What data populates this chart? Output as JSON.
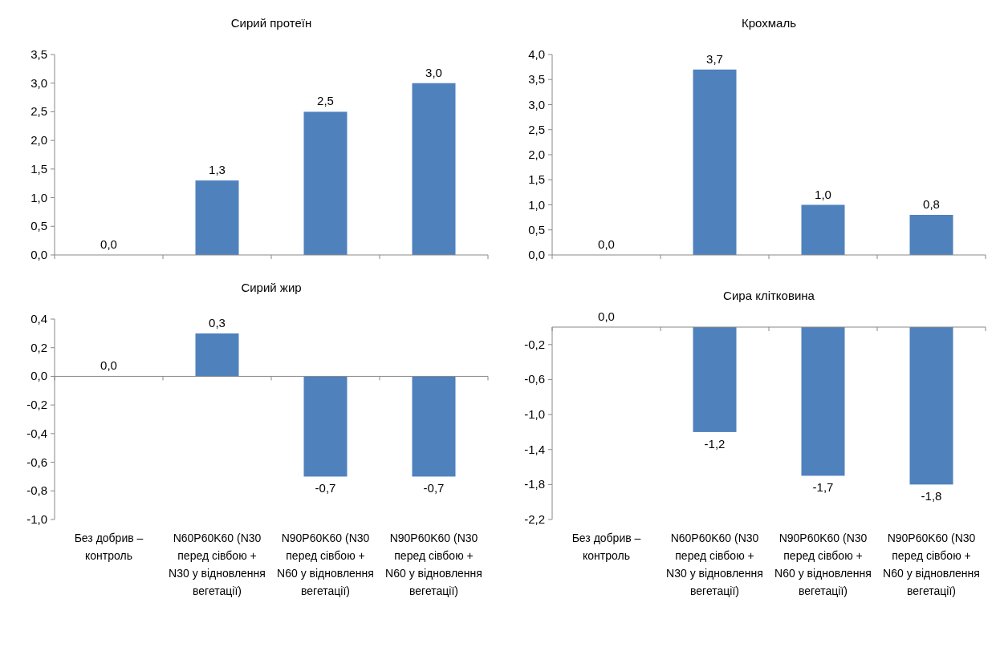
{
  "chart_data": [
    {
      "type": "bar",
      "title": "Сирий протеїн",
      "categories": [
        null,
        null,
        null,
        null
      ],
      "values": [
        0,
        1.3,
        2.5,
        3.0
      ],
      "color": "#4f81bd",
      "ylim": [
        0,
        3.5
      ],
      "yticks": [
        {
          "value": 0,
          "label": "0,0"
        },
        {
          "value": 0.5,
          "label": "0,5"
        },
        {
          "value": 1,
          "label": "1,0"
        },
        {
          "value": 1.5,
          "label": "1,5"
        },
        {
          "value": 2,
          "label": "2,0"
        },
        {
          "value": 2.5,
          "label": "2,5"
        },
        {
          "value": 3,
          "label": "3,0"
        },
        {
          "value": 3.5,
          "label": "3,5"
        }
      ],
      "value_labels": [
        "0,0",
        "1,3",
        "2,5",
        "3,0"
      ],
      "grid": false
    },
    {
      "type": "bar",
      "title": "Крохмаль",
      "categories": [
        null,
        null,
        null,
        null
      ],
      "values": [
        0,
        3.7,
        1.0,
        0.8
      ],
      "color": "#4f81bd",
      "ylim": [
        0,
        4
      ],
      "yticks": [
        {
          "value": 0,
          "label": "0,0"
        },
        {
          "value": 0.5,
          "label": "0,5"
        },
        {
          "value": 1,
          "label": "1,0"
        },
        {
          "value": 1.5,
          "label": "1,5"
        },
        {
          "value": 2,
          "label": "2,0"
        },
        {
          "value": 2.5,
          "label": "2,5"
        },
        {
          "value": 3,
          "label": "3,0"
        },
        {
          "value": 3.5,
          "label": "3,5"
        },
        {
          "value": 4,
          "label": "4,0"
        }
      ],
      "value_labels": [
        "0,0",
        "3,7",
        "1,0",
        "0,8"
      ],
      "grid": false
    },
    {
      "type": "bar",
      "title": "Сирий жир",
      "categories": [
        "Без добрив – контроль",
        "N60P60K60 (N30 перед сівбою + N30 у відновлення вегетації)",
        "N90P60K60 (N30 перед сівбою + N60 у відновлення вегетації)",
        "N90P60K60 (N30 перед сівбою + N60 у відновлення вегетації)"
      ],
      "values": [
        0,
        0.3,
        -0.7,
        -0.7
      ],
      "color": "#4f81bd",
      "ylim": [
        -1,
        0.4
      ],
      "yticks": [
        {
          "value": -1,
          "label": "-1,0"
        },
        {
          "value": -0.8,
          "label": "-0,8"
        },
        {
          "value": -0.6,
          "label": "-0,6"
        },
        {
          "value": -0.4,
          "label": "-0,4"
        },
        {
          "value": -0.2,
          "label": "-0,2"
        },
        {
          "value": 0,
          "label": "0,0"
        },
        {
          "value": 0.2,
          "label": "0,2"
        },
        {
          "value": 0.4,
          "label": "0,4"
        }
      ],
      "value_labels": [
        "0,0",
        "0,3",
        "-0,7",
        "-0,7"
      ]
    },
    {
      "type": "bar",
      "title": "Сира клітковина",
      "categories": [
        "Без добрив – контроль",
        "N60P60K60 (N30 перед сівбою + N30 у відновлення вегетації)",
        "N90P60K60 (N30 перед сівбою + N60 у відновлення вегетації)",
        "N90P60K60 (N30 перед сівбою + N60 у відновлення вегетації)"
      ],
      "values": [
        0,
        -1.2,
        -1.7,
        -1.8
      ],
      "color": "#4f81bd",
      "ylim": [
        -2.2,
        0
      ],
      "yticks": [
        {
          "value": -2.2,
          "label": "-2,2"
        },
        {
          "value": -1.8,
          "label": "-1,8"
        },
        {
          "value": -1.4,
          "label": "-1,4"
        },
        {
          "value": -1.0,
          "label": "-1,0"
        },
        {
          "value": -0.6,
          "label": "-0,6"
        },
        {
          "value": -0.2,
          "label": "-0,2"
        }
      ],
      "value_labels": [
        "0,0",
        "-1,2",
        "-1,7",
        "-1,8"
      ],
      "grid": false
    }
  ]
}
